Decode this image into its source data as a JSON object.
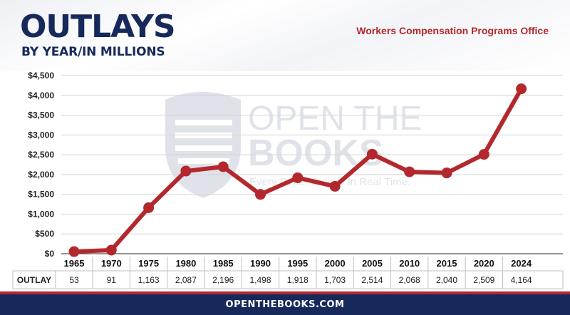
{
  "header": {
    "title": "OUTLAYS",
    "subtitle": "BY YEAR/IN MILLIONS",
    "agency": "Workers Compensation Programs Office"
  },
  "watermark": {
    "line1": "OPEN THE",
    "line2": "BOOKS",
    "tagline": "Every Dime. Online. In Real Time."
  },
  "table": {
    "row_label": "OUTLAY"
  },
  "footer": {
    "url": "OPENTHEBOOKS.COM"
  },
  "colors": {
    "navy": "#16295a",
    "red": "#b3282d",
    "line": "#b3282d"
  },
  "chart_data": {
    "type": "line",
    "categories": [
      "1965",
      "1970",
      "1975",
      "1980",
      "1985",
      "1990",
      "1995",
      "2000",
      "2005",
      "2010",
      "2015",
      "2020",
      "2024"
    ],
    "series": [
      {
        "values": [
          53,
          91,
          1163,
          2087,
          2196,
          1498,
          1918,
          1703,
          2514,
          2068,
          2040,
          2509,
          4164
        ]
      }
    ],
    "value_labels": [
      "53",
      "91",
      "1,163",
      "2,087",
      "2,196",
      "1,498",
      "1,918",
      "1,703",
      "2,514",
      "2,068",
      "2,040",
      "2,509",
      "4,164"
    ],
    "yticks": [
      0,
      500,
      1000,
      1500,
      2000,
      2500,
      3000,
      3500,
      4000,
      4500
    ],
    "ytick_labels": [
      "$0",
      "$500",
      "$1,000",
      "$1,500",
      "$2,000",
      "$2,500",
      "$3,000",
      "$3,500",
      "$4,000",
      "$4,500"
    ],
    "ylim": [
      0,
      4500
    ],
    "grid": true,
    "legend": "none",
    "xlabel": "",
    "ylabel": ""
  }
}
